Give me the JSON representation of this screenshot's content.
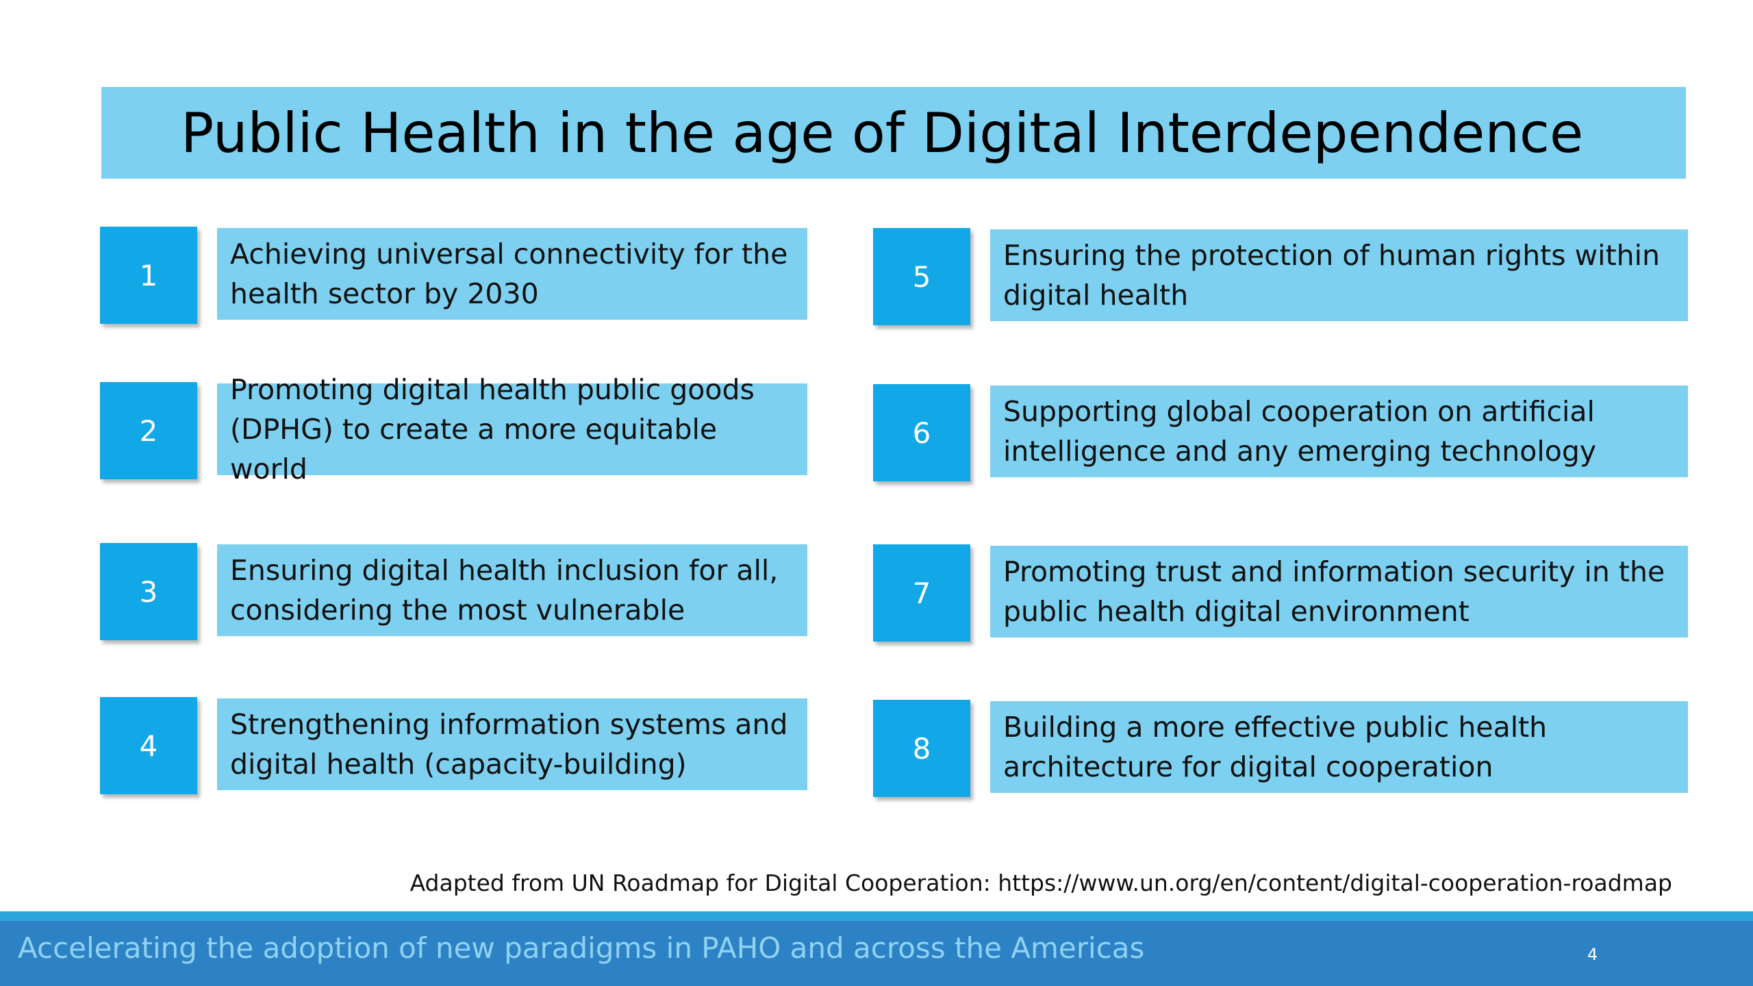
{
  "slide": {
    "title": "Public Health in the age of Digital Interdependence",
    "items": [
      {
        "number": "1",
        "text": "Achieving universal connectivity for the health sector by 2030"
      },
      {
        "number": "2",
        "text": "Promoting digital health public goods (DPHG) to create a more equitable world"
      },
      {
        "number": "3",
        "text": "Ensuring digital health inclusion for all, considering the most vulnerable"
      },
      {
        "number": "4",
        "text": "Strengthening information systems and digital health (capacity-building)"
      },
      {
        "number": "5",
        "text": "Ensuring the protection of human rights within digital health"
      },
      {
        "number": "6",
        "text": "Supporting global cooperation on artificial intelligence and any emerging technology"
      },
      {
        "number": "7",
        "text": "Promoting trust and information security in the public health digital environment"
      },
      {
        "number": "8",
        "text": "Building a more effective public health architecture for digital cooperation"
      }
    ],
    "source_note": "Adapted from UN Roadmap for Digital Cooperation: https://www.un.org/en/content/digital-cooperation-roadmap"
  },
  "footer": {
    "tagline": "Accelerating the adoption of new paradigms in PAHO and across the Americas",
    "page_number": "4"
  },
  "colors": {
    "light_blue": "#7dd0f0",
    "number_blue": "#12a7e6",
    "footer_blue": "#2d82c5"
  }
}
